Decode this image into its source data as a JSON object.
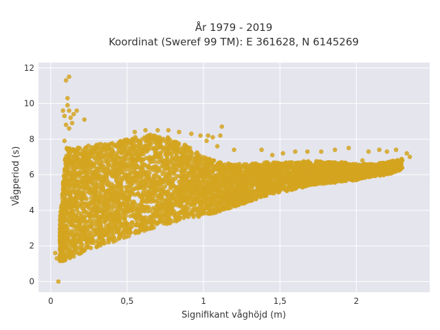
{
  "chart_data": {
    "type": "scatter",
    "title_lines": [
      "År 1979 - 2019",
      "Koordinat (Sweref 99 TM): E 361628, N 6145269"
    ],
    "xlabel": "Signifikant våghöjd (m)",
    "ylabel": "Vågperiod (s)",
    "xlim": [
      -0.08,
      2.48
    ],
    "ylim": [
      -0.6,
      12.3
    ],
    "x_ticks": [
      0,
      0.5,
      1,
      1.5,
      2
    ],
    "x_tick_labels": [
      "0",
      "0,5",
      "1",
      "1,5",
      "2"
    ],
    "y_ticks": [
      0,
      2,
      4,
      6,
      8,
      10,
      12
    ],
    "y_tick_labels": [
      "0",
      "2",
      "4",
      "6",
      "8",
      "10",
      "12"
    ],
    "grid": true,
    "legend": "none",
    "series": [
      {
        "color": "#d4a520",
        "outliers": [
          [
            0.05,
            0.0
          ],
          [
            0.06,
            1.5
          ],
          [
            0.07,
            1.4
          ],
          [
            0.08,
            1.3
          ],
          [
            0.1,
            11.3
          ],
          [
            0.12,
            11.5
          ],
          [
            0.11,
            10.3
          ],
          [
            0.11,
            9.9
          ],
          [
            0.12,
            9.6
          ],
          [
            0.08,
            9.6
          ],
          [
            0.09,
            9.3
          ],
          [
            0.13,
            9.2
          ],
          [
            0.15,
            9.4
          ],
          [
            0.17,
            9.6
          ],
          [
            0.22,
            9.1
          ],
          [
            0.1,
            8.8
          ],
          [
            0.12,
            8.6
          ],
          [
            0.14,
            8.9
          ],
          [
            0.09,
            7.9
          ],
          [
            0.55,
            8.4
          ],
          [
            0.62,
            8.5
          ],
          [
            0.7,
            8.5
          ],
          [
            0.77,
            8.5
          ],
          [
            0.84,
            8.4
          ],
          [
            0.92,
            8.3
          ],
          [
            0.98,
            8.2
          ],
          [
            1.03,
            8.2
          ],
          [
            1.06,
            8.1
          ],
          [
            1.12,
            8.7
          ],
          [
            1.11,
            8.2
          ],
          [
            1.02,
            7.9
          ],
          [
            1.09,
            7.6
          ],
          [
            1.2,
            7.4
          ],
          [
            1.38,
            7.4
          ],
          [
            1.45,
            7.1
          ],
          [
            1.52,
            7.2
          ],
          [
            1.6,
            7.3
          ],
          [
            1.68,
            7.3
          ],
          [
            1.77,
            7.3
          ],
          [
            1.86,
            7.4
          ],
          [
            1.95,
            7.5
          ],
          [
            2.08,
            7.3
          ],
          [
            2.15,
            7.4
          ],
          [
            2.2,
            7.3
          ],
          [
            2.26,
            7.4
          ],
          [
            2.33,
            7.2
          ],
          [
            2.35,
            7.0
          ],
          [
            2.3,
            6.8
          ],
          [
            2.24,
            6.6
          ],
          [
            2.18,
            6.4
          ],
          [
            2.22,
            6.2
          ],
          [
            2.12,
            6.5
          ],
          [
            2.04,
            6.8
          ],
          [
            0.03,
            1.6
          ],
          [
            0.04,
            1.3
          ]
        ],
        "envelope": {
          "segments": [
            {
              "x": 0.06,
              "lower": 1.1,
              "upper": 3.5
            },
            {
              "x": 0.1,
              "lower": 1.2,
              "upper": 7.5
            },
            {
              "x": 0.15,
              "lower": 1.4,
              "upper": 7.6
            },
            {
              "x": 0.2,
              "lower": 1.6,
              "upper": 7.6
            },
            {
              "x": 0.3,
              "lower": 1.9,
              "upper": 7.7
            },
            {
              "x": 0.4,
              "lower": 2.2,
              "upper": 7.8
            },
            {
              "x": 0.5,
              "lower": 2.5,
              "upper": 8.0
            },
            {
              "x": 0.6,
              "lower": 2.8,
              "upper": 8.2
            },
            {
              "x": 0.7,
              "lower": 3.1,
              "upper": 8.3
            },
            {
              "x": 0.8,
              "lower": 3.3,
              "upper": 8.0
            },
            {
              "x": 0.9,
              "lower": 3.5,
              "upper": 7.6
            },
            {
              "x": 1.0,
              "lower": 3.7,
              "upper": 7.0
            },
            {
              "x": 1.1,
              "lower": 3.9,
              "upper": 6.7
            },
            {
              "x": 1.2,
              "lower": 4.2,
              "upper": 6.6
            },
            {
              "x": 1.3,
              "lower": 4.5,
              "upper": 6.6
            },
            {
              "x": 1.4,
              "lower": 4.8,
              "upper": 6.7
            },
            {
              "x": 1.5,
              "lower": 5.0,
              "upper": 6.7
            },
            {
              "x": 1.6,
              "lower": 5.2,
              "upper": 6.7
            },
            {
              "x": 1.7,
              "lower": 5.4,
              "upper": 6.8
            },
            {
              "x": 1.8,
              "lower": 5.5,
              "upper": 6.7
            },
            {
              "x": 1.9,
              "lower": 5.6,
              "upper": 6.7
            },
            {
              "x": 2.0,
              "lower": 5.7,
              "upper": 6.6
            },
            {
              "x": 2.1,
              "lower": 5.9,
              "upper": 6.6
            },
            {
              "x": 2.2,
              "lower": 6.0,
              "upper": 6.7
            },
            {
              "x": 2.3,
              "lower": 6.3,
              "upper": 6.9
            }
          ]
        }
      }
    ]
  }
}
